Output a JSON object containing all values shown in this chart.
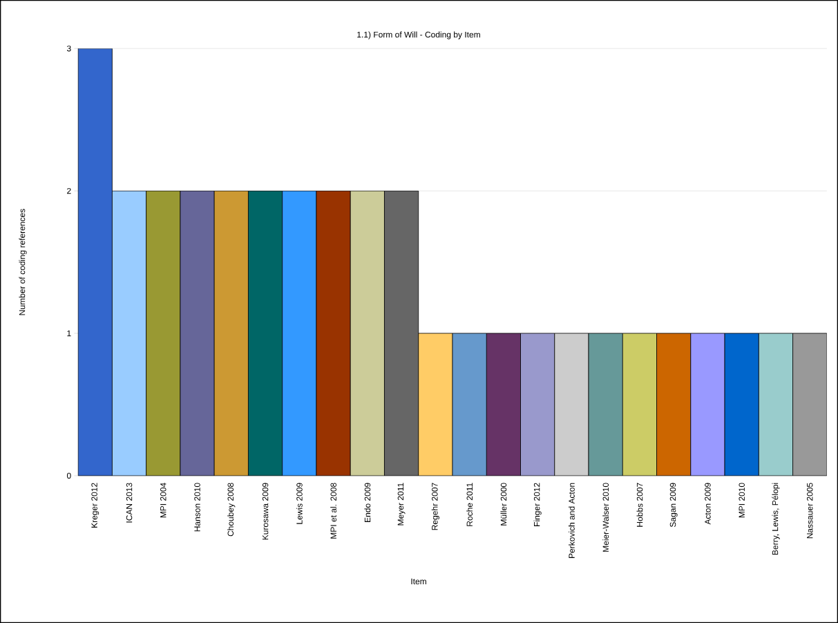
{
  "chart_data": {
    "type": "bar",
    "title": "1.1) Form of Will - Coding by Item",
    "xlabel": "Item",
    "ylabel": "Number of coding references",
    "categories": [
      "Kreger 2012",
      "ICAN 2013",
      "MPI 2004",
      "Hanson 2010",
      "Choubey 2008",
      "Kurosawa 2009",
      "Lewis 2009",
      "MPI et al. 2008",
      "Endo 2009",
      "Meyer 2011",
      "Regehr 2007",
      "Roche 2011",
      "Müller 2000",
      "Finger 2012",
      "Perkovich and Acton",
      "Meier-Walser 2010",
      "Hobbs 2007",
      "Sagan 2009",
      "Acton 2009",
      "MPI 2010",
      "Berry, Lewis, Pélopi",
      "Nassauer 2005"
    ],
    "values": [
      3,
      2,
      2,
      2,
      2,
      2,
      2,
      2,
      2,
      2,
      1,
      1,
      1,
      1,
      1,
      1,
      1,
      1,
      1,
      1,
      1,
      1
    ],
    "colors": [
      "#3366cc",
      "#99ccff",
      "#999933",
      "#666699",
      "#cc9933",
      "#006666",
      "#3399ff",
      "#993300",
      "#cccc99",
      "#666666",
      "#ffcc66",
      "#6699cc",
      "#663366",
      "#9999cc",
      "#cccccc",
      "#669999",
      "#cccc66",
      "#cc6600",
      "#9999ff",
      "#0066cc",
      "#99cccc",
      "#999999"
    ],
    "ylim": [
      0,
      3
    ],
    "yticks": [
      0,
      1,
      2,
      3
    ],
    "grid": "y"
  }
}
